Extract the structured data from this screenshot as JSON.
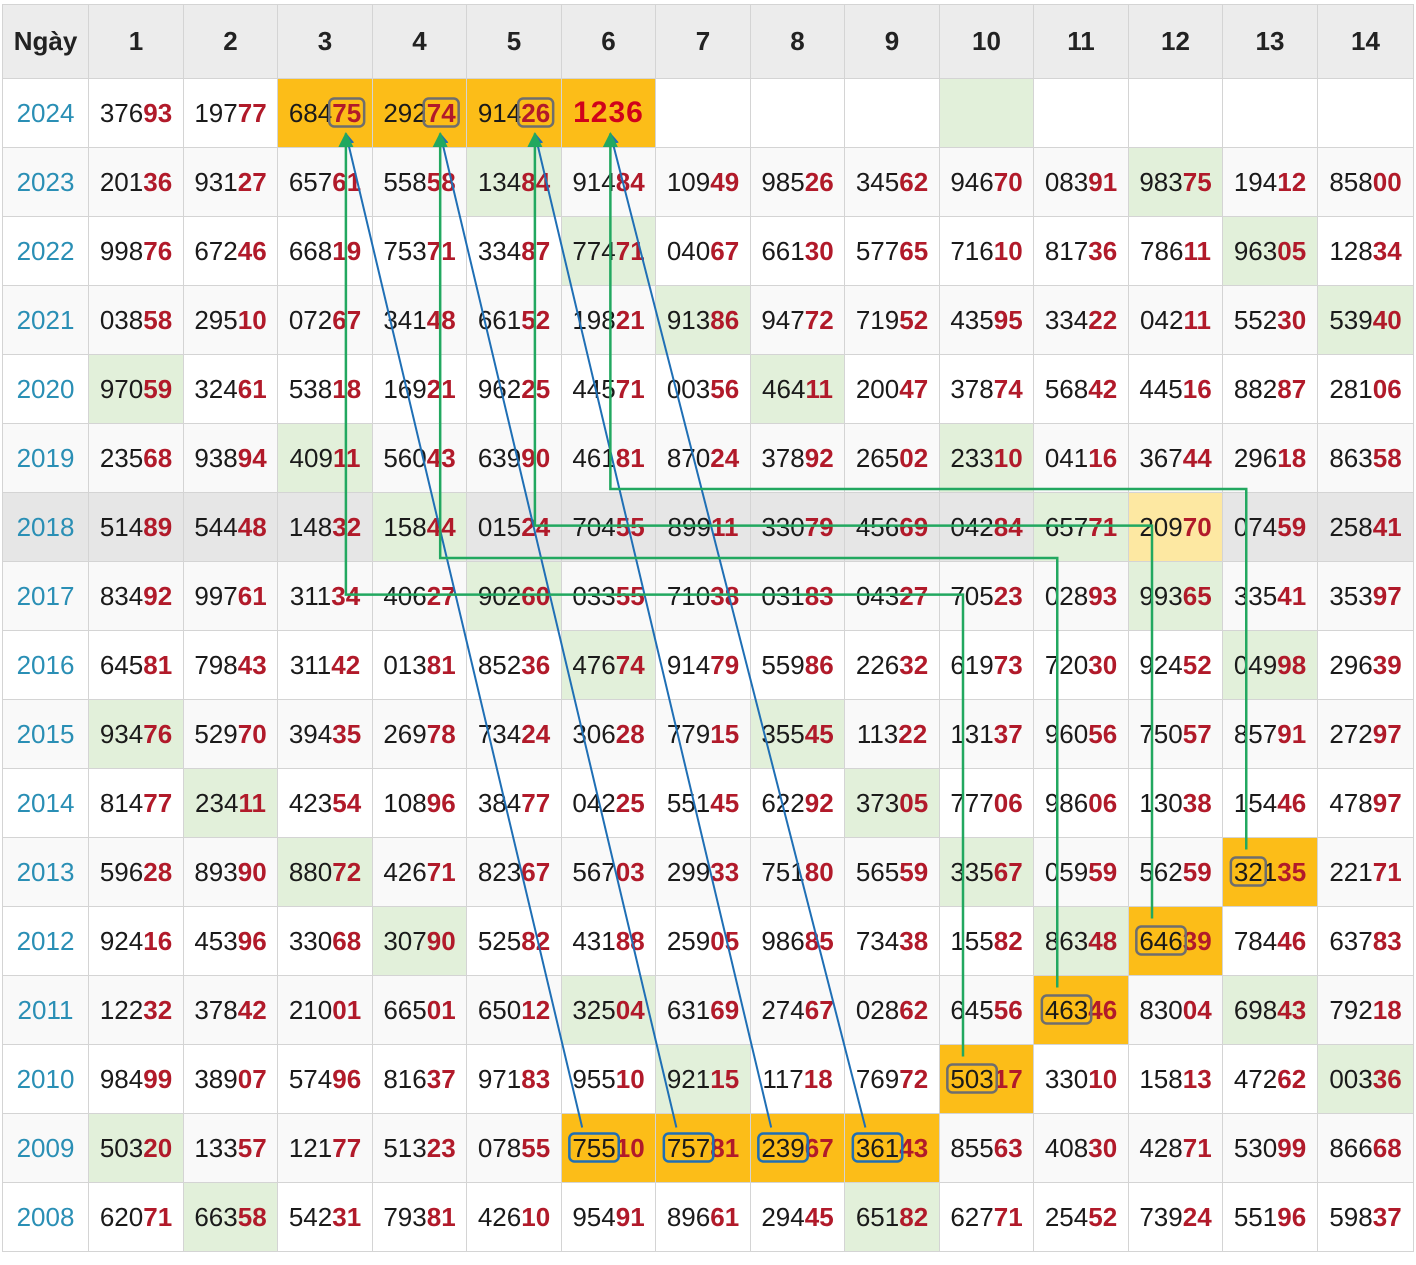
{
  "header": [
    "Ngày",
    "1",
    "2",
    "3",
    "4",
    "5",
    "6",
    "7",
    "8",
    "9",
    "10",
    "11",
    "12",
    "13",
    "14"
  ],
  "rows": [
    {
      "year": "2024",
      "cells": [
        "37693",
        "19777",
        "68475",
        "29274",
        "91426",
        "1236",
        "",
        "",
        "",
        "",
        "",
        "",
        "",
        ""
      ]
    },
    {
      "year": "2023",
      "cells": [
        "20136",
        "93127",
        "65761",
        "55858",
        "13484",
        "91484",
        "10949",
        "98526",
        "34562",
        "94670",
        "08391",
        "98375",
        "19412",
        "85800"
      ]
    },
    {
      "year": "2022",
      "cells": [
        "99876",
        "67246",
        "66819",
        "75371",
        "33487",
        "77471",
        "04067",
        "66130",
        "57765",
        "71610",
        "81736",
        "78611",
        "96305",
        "12834"
      ]
    },
    {
      "year": "2021",
      "cells": [
        "03858",
        "29510",
        "07267",
        "34148",
        "66152",
        "19821",
        "91386",
        "94772",
        "71952",
        "43595",
        "33422",
        "04211",
        "55230",
        "53940"
      ]
    },
    {
      "year": "2020",
      "cells": [
        "97059",
        "32461",
        "53818",
        "16921",
        "96225",
        "44571",
        "00356",
        "46411",
        "20047",
        "37874",
        "56842",
        "44516",
        "88287",
        "28106"
      ]
    },
    {
      "year": "2019",
      "cells": [
        "23568",
        "93894",
        "40911",
        "56043",
        "63990",
        "46181",
        "87024",
        "37892",
        "26502",
        "23310",
        "04116",
        "36744",
        "29618",
        "86358"
      ]
    },
    {
      "year": "2018",
      "cells": [
        "51489",
        "54448",
        "14832",
        "15844",
        "01524",
        "70455",
        "89911",
        "33079",
        "45669",
        "04284",
        "65771",
        "20970",
        "07459",
        "25841"
      ]
    },
    {
      "year": "2017",
      "cells": [
        "83492",
        "99761",
        "31134",
        "40627",
        "90260",
        "03355",
        "71038",
        "03183",
        "04327",
        "70523",
        "02893",
        "99365",
        "33541",
        "35397"
      ]
    },
    {
      "year": "2016",
      "cells": [
        "64581",
        "79843",
        "31142",
        "01381",
        "85236",
        "47674",
        "91479",
        "55986",
        "22632",
        "61973",
        "72030",
        "92452",
        "04998",
        "29639"
      ]
    },
    {
      "year": "2015",
      "cells": [
        "93476",
        "52970",
        "39435",
        "26978",
        "73424",
        "30628",
        "77915",
        "35545",
        "11322",
        "13137",
        "96056",
        "75057",
        "85791",
        "27297"
      ]
    },
    {
      "year": "2014",
      "cells": [
        "81477",
        "23411",
        "42354",
        "10896",
        "38477",
        "04225",
        "55145",
        "62292",
        "37305",
        "77706",
        "98606",
        "13038",
        "15446",
        "47897"
      ]
    },
    {
      "year": "2013",
      "cells": [
        "59628",
        "89390",
        "88072",
        "42671",
        "82367",
        "56703",
        "29933",
        "75180",
        "56559",
        "33567",
        "05959",
        "56259",
        "32135",
        "22171"
      ]
    },
    {
      "year": "2012",
      "cells": [
        "92416",
        "45396",
        "33068",
        "30790",
        "52582",
        "43188",
        "25905",
        "98685",
        "73438",
        "15582",
        "86348",
        "64639",
        "78446",
        "63783"
      ]
    },
    {
      "year": "2011",
      "cells": [
        "12232",
        "37842",
        "21001",
        "66501",
        "65012",
        "32504",
        "63169",
        "27467",
        "02862",
        "64556",
        "46346",
        "83004",
        "69843",
        "79218"
      ]
    },
    {
      "year": "2010",
      "cells": [
        "98499",
        "38907",
        "57496",
        "81637",
        "97183",
        "95510",
        "92115",
        "11718",
        "76972",
        "50317",
        "33010",
        "15813",
        "47262",
        "00336"
      ]
    },
    {
      "year": "2009",
      "cells": [
        "50320",
        "13357",
        "12177",
        "51323",
        "07855",
        "75510",
        "75781",
        "23967",
        "36143",
        "85563",
        "40830",
        "42871",
        "53099",
        "86668"
      ]
    },
    {
      "year": "2008",
      "cells": [
        "62071",
        "66358",
        "54231",
        "79381",
        "42610",
        "95491",
        "89661",
        "29445",
        "65182",
        "62771",
        "25452",
        "73924",
        "55196",
        "59837"
      ]
    }
  ],
  "colors": {
    "year_text": "#2a8fb5",
    "tail_text": "#b11a2a",
    "highlight_gold": "#fcbd18",
    "highlight_light_gold": "#fde8a2",
    "highlight_green": "#e2f0da",
    "connector_blue": "#1f6fb5",
    "connector_green": "#22a860"
  },
  "highlights": {
    "gold": [
      "2024-3",
      "2024-4",
      "2024-5",
      "2024-6",
      "2013-13",
      "2012-12",
      "2011-11",
      "2010-10",
      "2009-6",
      "2009-7",
      "2009-8",
      "2009-9"
    ],
    "light_gold": [
      "2018-12"
    ],
    "green": [
      "2024-10",
      "2023-5",
      "2023-12",
      "2022-6",
      "2022-13",
      "2021-7",
      "2021-14",
      "2020-1",
      "2020-8",
      "2019-3",
      "2019-10",
      "2018-4",
      "2018-11",
      "2017-5",
      "2017-12",
      "2016-6",
      "2016-13",
      "2015-1",
      "2015-8",
      "2014-2",
      "2014-9",
      "2013-3",
      "2013-10",
      "2012-4",
      "2012-11",
      "2011-6",
      "2011-13",
      "2010-7",
      "2010-14",
      "2009-1",
      "2008-2",
      "2008-9"
    ]
  },
  "boxed": [
    {
      "cell": "2024-3",
      "from": 3,
      "to": 5,
      "style": "gray"
    },
    {
      "cell": "2024-4",
      "from": 3,
      "to": 5,
      "style": "gray"
    },
    {
      "cell": "2024-5",
      "from": 3,
      "to": 5,
      "style": "gray"
    },
    {
      "cell": "2013-13",
      "from": 0,
      "to": 2,
      "style": "gray"
    },
    {
      "cell": "2012-12",
      "from": 0,
      "to": 3,
      "style": "gray"
    },
    {
      "cell": "2011-11",
      "from": 0,
      "to": 3,
      "style": "gray"
    },
    {
      "cell": "2010-10",
      "from": 0,
      "to": 3,
      "style": "gray"
    },
    {
      "cell": "2009-6",
      "from": 0,
      "to": 3,
      "style": "blue"
    },
    {
      "cell": "2009-7",
      "from": 0,
      "to": 3,
      "style": "blue"
    },
    {
      "cell": "2009-8",
      "from": 0,
      "to": 3,
      "style": "blue"
    },
    {
      "cell": "2009-9",
      "from": 0,
      "to": 3,
      "style": "blue"
    }
  ],
  "blue_links": [
    {
      "from": "2009-6",
      "to": "2024-3"
    },
    {
      "from": "2009-7",
      "to": "2024-4"
    },
    {
      "from": "2009-8",
      "to": "2024-5"
    },
    {
      "from": "2009-9",
      "to": "2024-6"
    }
  ],
  "green_links": [
    {
      "from": "2010-10",
      "via_row": "2017",
      "to": "2024-3"
    },
    {
      "from": "2011-11",
      "via_row": "2017",
      "to": "2024-4"
    },
    {
      "from": "2012-12",
      "via_row": "2018",
      "to": "2024-5"
    },
    {
      "from": "2013-13",
      "via_row": "2018",
      "to": "2024-6"
    }
  ]
}
